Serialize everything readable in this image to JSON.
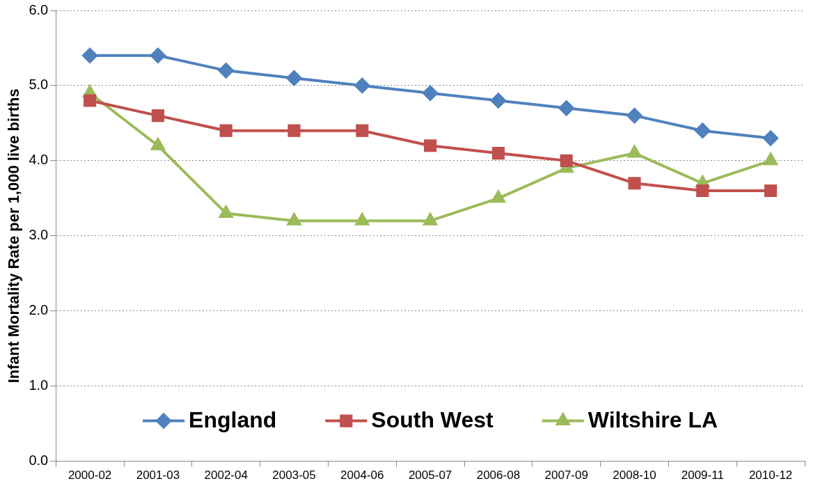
{
  "chart_data": {
    "type": "line",
    "ylabel": "Infant Mortality Rate per 1,000 live births",
    "categories": [
      "2000-02",
      "2001-03",
      "2002-04",
      "2003-05",
      "2004-06",
      "2005-07",
      "2006-08",
      "2007-09",
      "2008-10",
      "2009-11",
      "2010-12"
    ],
    "series": [
      {
        "name": "England",
        "color": "#4f81bd",
        "marker": "diamond",
        "values": [
          5.4,
          5.4,
          5.2,
          5.1,
          5.0,
          4.9,
          4.8,
          4.7,
          4.6,
          4.4,
          4.3
        ]
      },
      {
        "name": "South West",
        "color": "#c0504d",
        "marker": "square",
        "values": [
          4.8,
          4.6,
          4.4,
          4.4,
          4.4,
          4.2,
          4.1,
          4.0,
          3.7,
          3.6,
          3.6
        ]
      },
      {
        "name": "Wiltshire LA",
        "color": "#9bbb59",
        "marker": "triangle",
        "values": [
          4.9,
          4.2,
          3.3,
          3.2,
          3.2,
          3.2,
          3.5,
          3.9,
          4.1,
          3.7,
          4.0
        ]
      }
    ],
    "ylim": [
      0,
      6
    ],
    "yticks": [
      {
        "value": 0,
        "label": "0.0"
      },
      {
        "value": 1,
        "label": "1.0"
      },
      {
        "value": 2,
        "label": "2.0"
      },
      {
        "value": 3,
        "label": "3.0"
      },
      {
        "value": 4,
        "label": "4.0"
      },
      {
        "value": 5,
        "label": "5.0"
      },
      {
        "value": 6,
        "label": "6.0"
      }
    ],
    "grid": "y",
    "legend": "bottom",
    "line_style": "solid"
  }
}
